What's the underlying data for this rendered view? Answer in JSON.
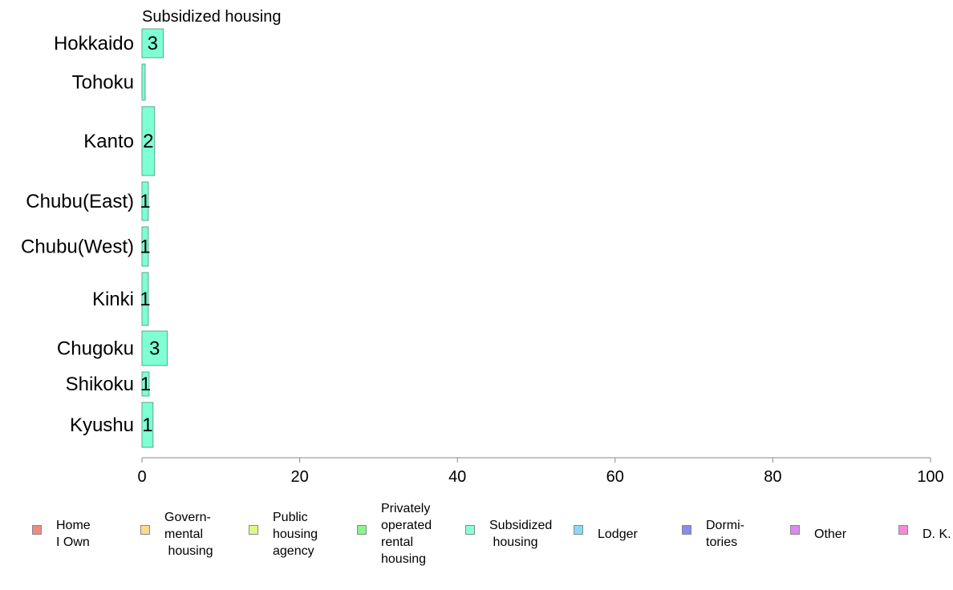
{
  "chart_data": {
    "type": "bar",
    "orientation": "horizontal",
    "title": "Subsidized housing",
    "categories": [
      "Hokkaido",
      "Tohoku",
      "Kanto",
      "Chubu(East)",
      "Chubu(West)",
      "Kinki",
      "Chugoku",
      "Shikoku",
      "Kyushu"
    ],
    "values": [
      2.7,
      0.4,
      1.6,
      0.8,
      0.8,
      0.8,
      3.2,
      0.9,
      1.4
    ],
    "data_labels": [
      "3",
      "",
      "2",
      "1",
      "1",
      "1",
      "3",
      "1",
      "1"
    ],
    "xlim": [
      0,
      100
    ],
    "x_ticks": [
      "0",
      "20",
      "40",
      "60",
      "80",
      "100"
    ],
    "grid": false,
    "bar_color": "#7fffd4",
    "bar_edge_color": "#5fa58f",
    "legend_position": "bottom",
    "legend": [
      {
        "label": "Home\nI Own",
        "color": "#f08a84"
      },
      {
        "label": "Govern-\nmental\n housing",
        "color": "#ffd98a"
      },
      {
        "label": "Public\nhousing\nagency",
        "color": "#e0f78a"
      },
      {
        "label": "Privately\noperated\nrental\nhousing",
        "color": "#8af58a"
      },
      {
        "label": "Subsidized\n housing",
        "color": "#8affd9"
      },
      {
        "label": "Lodger",
        "color": "#8ad8f7"
      },
      {
        "label": "Dormi-\ntories",
        "color": "#8a8af0"
      },
      {
        "label": "Other",
        "color": "#d98af0"
      },
      {
        "label": "D. K.",
        "color": "#f78ad6"
      }
    ]
  }
}
